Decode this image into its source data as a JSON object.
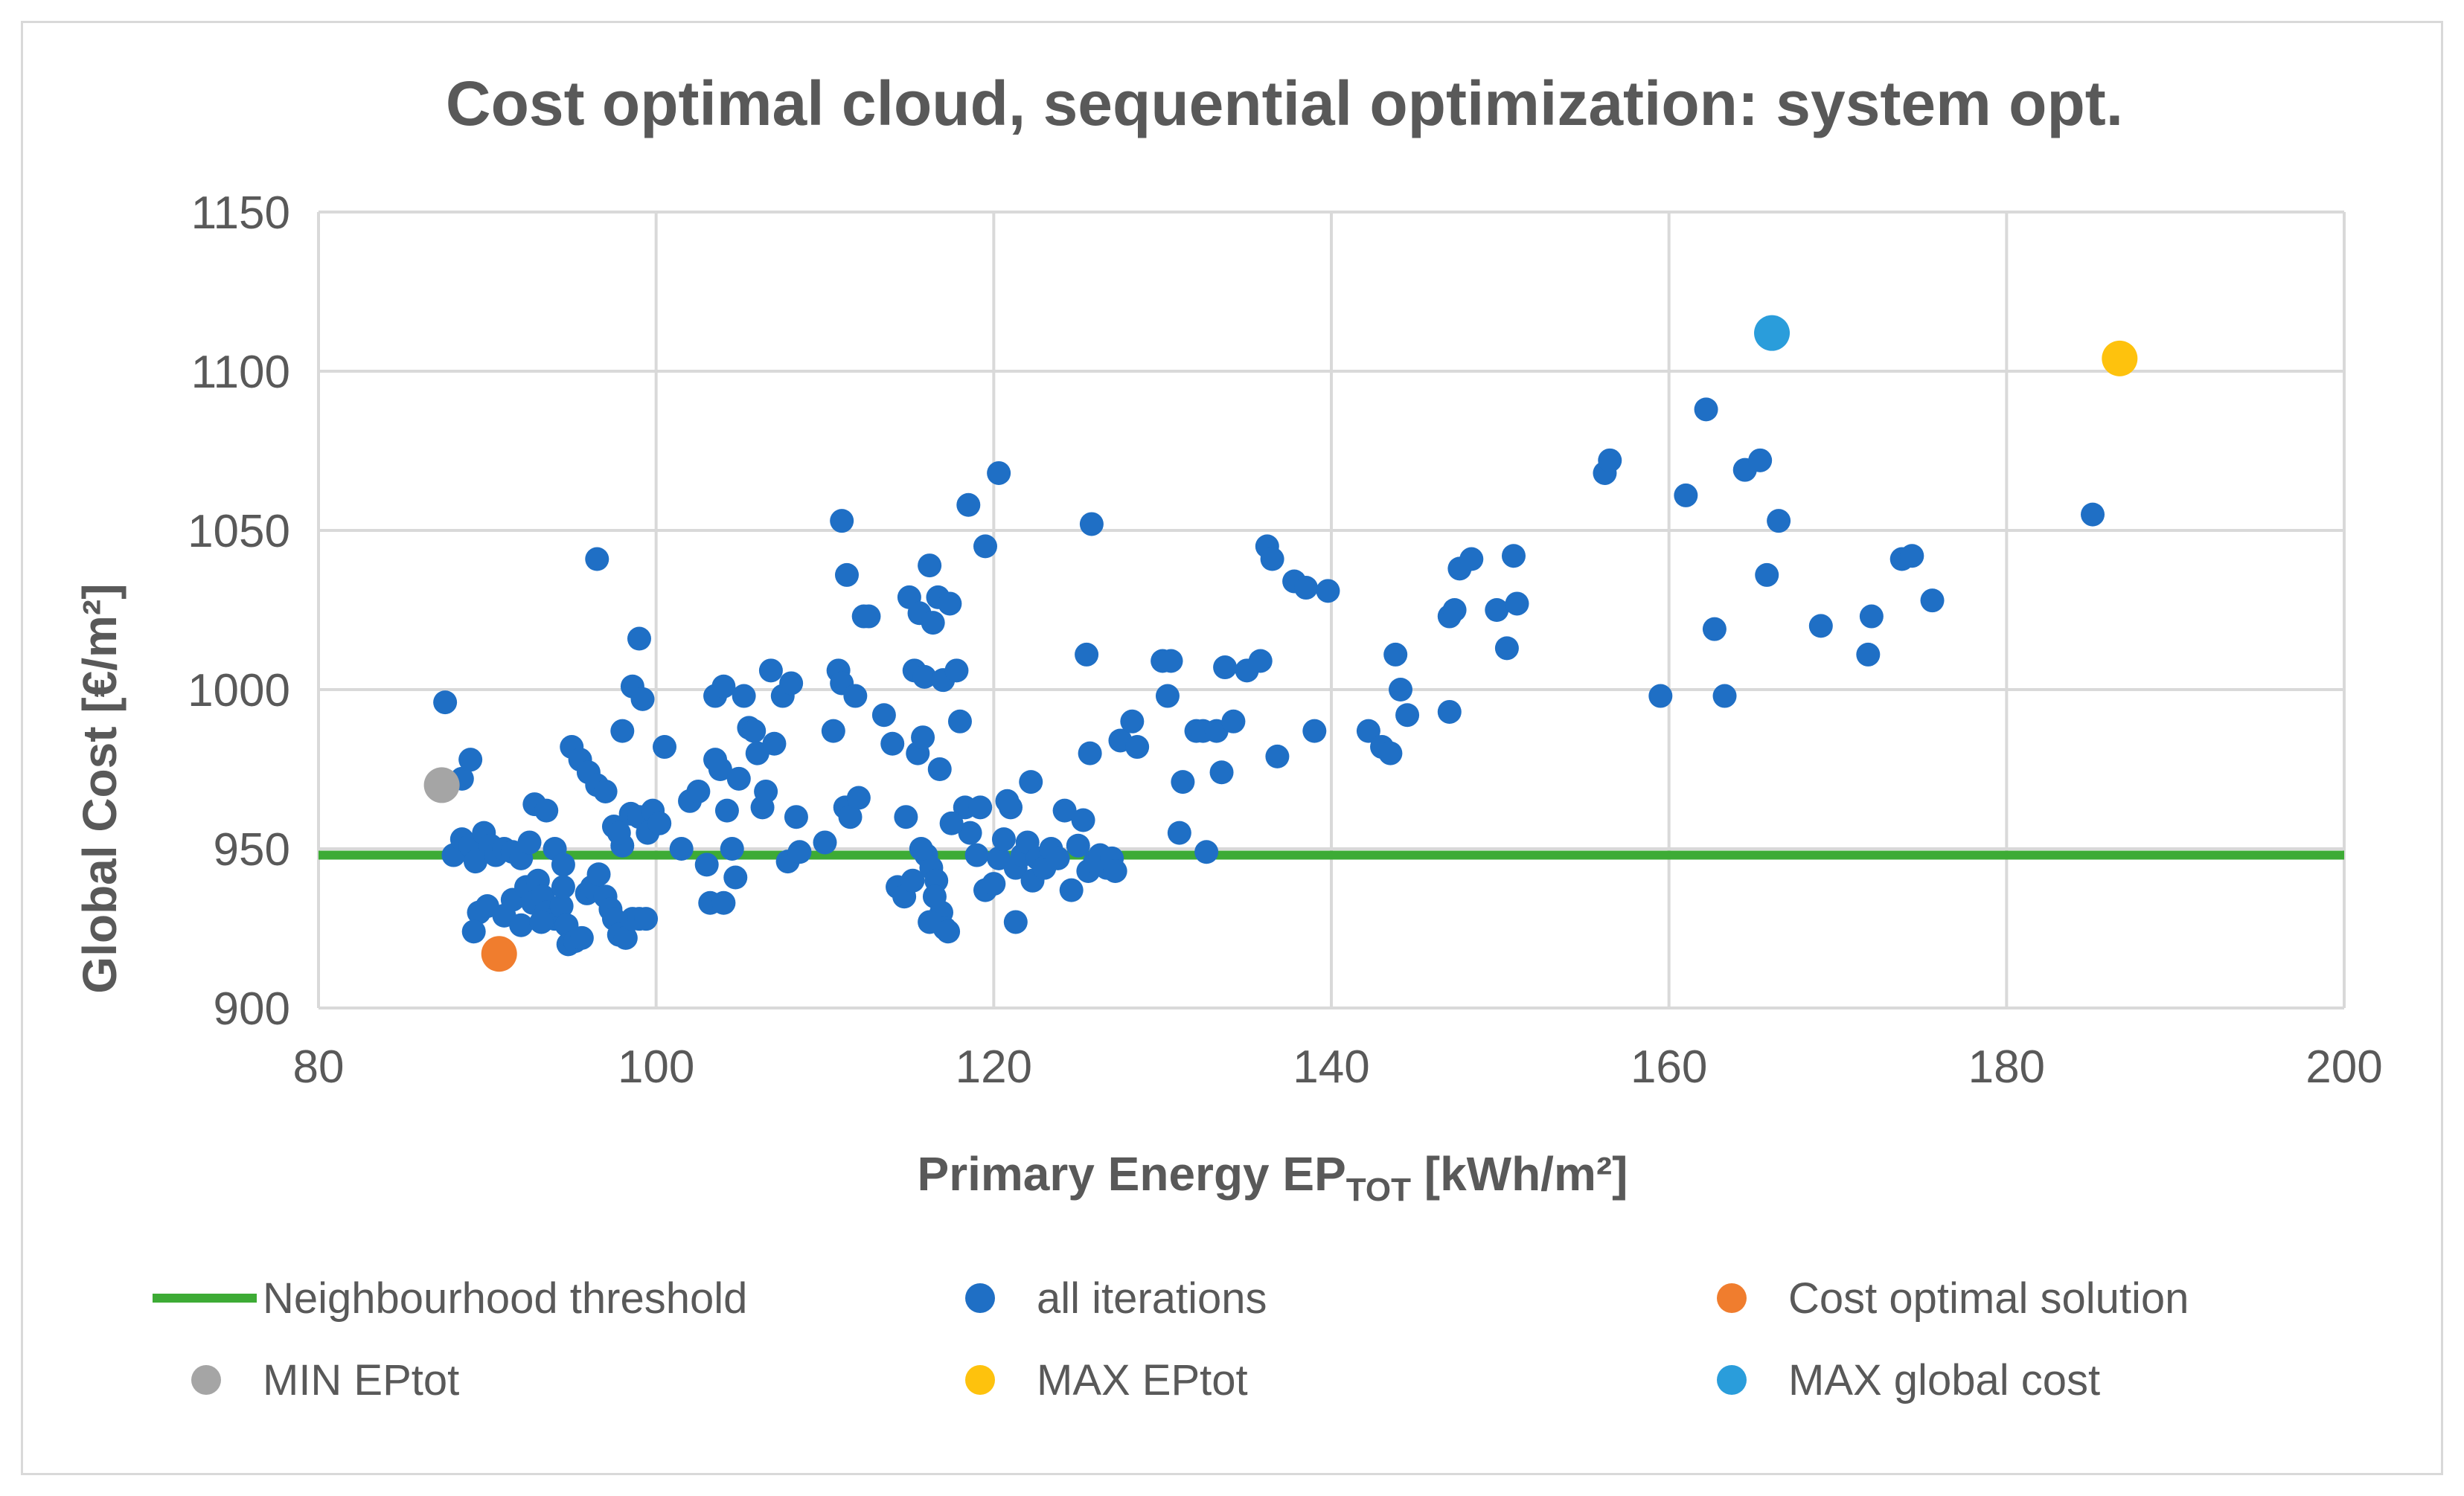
{
  "chart_data": {
    "type": "scatter",
    "title": "Cost optimal cloud, sequential optimization: system opt.",
    "xlabel": {
      "prefix": "Primary Energy EP",
      "subscript": "TOT",
      "suffix": " [kWh/m²]"
    },
    "ylabel": "Global Cost [€/m²]",
    "xlim": [
      80,
      200
    ],
    "ylim": [
      900,
      1150
    ],
    "x_ticks": [
      80,
      100,
      120,
      140,
      160,
      180,
      200
    ],
    "y_ticks": [
      900,
      950,
      1000,
      1050,
      1100,
      1150
    ],
    "grid": true,
    "legend_position": "bottom",
    "threshold": {
      "name": "Neighbourhood threshold",
      "y": 948,
      "color": "#3dab35"
    },
    "series": [
      {
        "name": "all iterations",
        "color": "#1f6fc5",
        "points": [
          [
            87.5,
            996
          ],
          [
            88.5,
            972
          ],
          [
            89,
            978
          ],
          [
            88,
            948
          ],
          [
            88.5,
            953
          ],
          [
            89,
            951
          ],
          [
            89.3,
            946
          ],
          [
            89.8,
            955
          ],
          [
            90.2,
            951
          ],
          [
            90.5,
            948
          ],
          [
            91,
            950
          ],
          [
            91.5,
            949
          ],
          [
            92,
            947
          ],
          [
            92.5,
            952
          ],
          [
            92.8,
            964
          ],
          [
            93.5,
            962
          ],
          [
            94,
            950
          ],
          [
            94.5,
            945
          ],
          [
            95,
            982
          ],
          [
            95.5,
            978
          ],
          [
            96,
            974
          ],
          [
            96.5,
            970
          ],
          [
            97,
            968
          ],
          [
            97.5,
            957
          ],
          [
            98,
            951
          ],
          [
            98.5,
            961
          ],
          [
            99,
            960
          ],
          [
            99.5,
            955
          ],
          [
            99.8,
            962
          ],
          [
            100.2,
            958
          ],
          [
            98.6,
            1001
          ],
          [
            99.2,
            997
          ],
          [
            99,
            1016
          ],
          [
            98,
            987
          ],
          [
            96.5,
            1041
          ],
          [
            97.8,
            955
          ],
          [
            89.5,
            930
          ],
          [
            89.2,
            924
          ],
          [
            90,
            932
          ],
          [
            91,
            929
          ],
          [
            91.5,
            934
          ],
          [
            92,
            926
          ],
          [
            92.3,
            938
          ],
          [
            92.7,
            933
          ],
          [
            93,
            940
          ],
          [
            93.3,
            935
          ],
          [
            93.5,
            930
          ],
          [
            94,
            928
          ],
          [
            94.4,
            932
          ],
          [
            94.7,
            926
          ],
          [
            94.8,
            920
          ],
          [
            95.2,
            921
          ],
          [
            95.6,
            922
          ],
          [
            95.9,
            936
          ],
          [
            96.2,
            938
          ],
          [
            96.6,
            942
          ],
          [
            97,
            935
          ],
          [
            97.3,
            931
          ],
          [
            97.5,
            928
          ],
          [
            97.8,
            923
          ],
          [
            98.2,
            922
          ],
          [
            98.6,
            928
          ],
          [
            99,
            928
          ],
          [
            99.4,
            928
          ],
          [
            93.2,
            927
          ],
          [
            94.5,
            938
          ],
          [
            100.5,
            982
          ],
          [
            101.5,
            950
          ],
          [
            102,
            965
          ],
          [
            102.5,
            968
          ],
          [
            103,
            945
          ],
          [
            103.2,
            933
          ],
          [
            103.5,
            998
          ],
          [
            103.8,
            975
          ],
          [
            104,
            1001
          ],
          [
            104.2,
            962
          ],
          [
            104.5,
            950
          ],
          [
            104.7,
            941
          ],
          [
            104.9,
            972
          ],
          [
            105.2,
            998
          ],
          [
            105.5,
            988
          ],
          [
            105.8,
            987
          ],
          [
            106,
            980
          ],
          [
            106.3,
            963
          ],
          [
            106.5,
            968
          ],
          [
            106.8,
            1006
          ],
          [
            107,
            983
          ],
          [
            107.5,
            998
          ],
          [
            107.8,
            946
          ],
          [
            108,
            1002
          ],
          [
            108.3,
            960
          ],
          [
            108.5,
            949
          ],
          [
            104,
            933
          ],
          [
            103.5,
            978
          ],
          [
            110,
            952
          ],
          [
            110.5,
            987
          ],
          [
            110.8,
            1006
          ],
          [
            111,
            1002
          ],
          [
            111.2,
            963
          ],
          [
            111.5,
            960
          ],
          [
            111.8,
            998
          ],
          [
            112,
            966
          ],
          [
            112.3,
            1023
          ],
          [
            112.6,
            1023
          ],
          [
            111,
            1053
          ],
          [
            111.3,
            1036
          ],
          [
            113.5,
            992
          ],
          [
            114,
            983
          ],
          [
            114.3,
            938
          ],
          [
            114.7,
            935
          ],
          [
            115,
            1029
          ],
          [
            115.3,
            1006
          ],
          [
            115.6,
            1024
          ],
          [
            115.9,
            1004
          ],
          [
            116.2,
            1039
          ],
          [
            116.4,
            1021
          ],
          [
            116.7,
            1029
          ],
          [
            117,
            1003
          ],
          [
            117.4,
            1027
          ],
          [
            117.8,
            1006
          ],
          [
            118,
            990
          ],
          [
            118.3,
            963
          ],
          [
            118.6,
            955
          ],
          [
            115.5,
            980
          ],
          [
            115.8,
            985
          ],
          [
            116,
            948
          ],
          [
            116.3,
            944
          ],
          [
            116.6,
            940
          ],
          [
            116.9,
            930
          ],
          [
            117.1,
            925
          ],
          [
            117.3,
            924
          ],
          [
            116.2,
            927
          ],
          [
            116.5,
            935
          ],
          [
            115.7,
            950
          ],
          [
            116.8,
            975
          ],
          [
            117.5,
            958
          ],
          [
            114.8,
            960
          ],
          [
            115.2,
            940
          ],
          [
            118.5,
            1058
          ],
          [
            119.5,
            1045
          ],
          [
            120.3,
            1068
          ],
          [
            119,
            948
          ],
          [
            119.5,
            937
          ],
          [
            120,
            939
          ],
          [
            120.3,
            947
          ],
          [
            120.6,
            953
          ],
          [
            121,
            963
          ],
          [
            121.3,
            944
          ],
          [
            121.7,
            948
          ],
          [
            122,
            952
          ],
          [
            122.3,
            940
          ],
          [
            122.6,
            947
          ],
          [
            123,
            944
          ],
          [
            123.4,
            950
          ],
          [
            123.8,
            947
          ],
          [
            124.2,
            962
          ],
          [
            124.6,
            937
          ],
          [
            125,
            951
          ],
          [
            125.3,
            959
          ],
          [
            125.6,
            943
          ],
          [
            126,
            946
          ],
          [
            126.3,
            948
          ],
          [
            126.7,
            944
          ],
          [
            127,
            947
          ],
          [
            127.2,
            943
          ],
          [
            119.2,
            963
          ],
          [
            120.8,
            965
          ],
          [
            121.3,
            927
          ],
          [
            122.2,
            971
          ],
          [
            125.7,
            980
          ],
          [
            125.5,
            1011
          ],
          [
            125.8,
            1052
          ],
          [
            127.5,
            984
          ],
          [
            128.2,
            990
          ],
          [
            128.5,
            982
          ],
          [
            130,
            1009
          ],
          [
            130.5,
            1009
          ],
          [
            130.3,
            998
          ],
          [
            131,
            955
          ],
          [
            131.2,
            971
          ],
          [
            132,
            987
          ],
          [
            132.4,
            987
          ],
          [
            132.6,
            949
          ],
          [
            133.2,
            987
          ],
          [
            133.5,
            974
          ],
          [
            133.7,
            1007
          ],
          [
            134.2,
            990
          ],
          [
            135,
            1006
          ],
          [
            135.8,
            1009
          ],
          [
            136.2,
            1045
          ],
          [
            136.5,
            1041
          ],
          [
            136.8,
            979
          ],
          [
            137.8,
            1034
          ],
          [
            138.5,
            1032
          ],
          [
            139,
            987
          ],
          [
            139.8,
            1031
          ],
          [
            142.2,
            987
          ],
          [
            143,
            982
          ],
          [
            143.5,
            980
          ],
          [
            143.8,
            1011
          ],
          [
            144.1,
            1000
          ],
          [
            144.5,
            992
          ],
          [
            147,
            993
          ],
          [
            147,
            1023
          ],
          [
            147.3,
            1025
          ],
          [
            147.6,
            1038
          ],
          [
            148.3,
            1041
          ],
          [
            149.8,
            1025
          ],
          [
            150.4,
            1013
          ],
          [
            150.8,
            1042
          ],
          [
            151,
            1027
          ],
          [
            156.2,
            1068
          ],
          [
            156.5,
            1072
          ],
          [
            159.5,
            998
          ],
          [
            161,
            1061
          ],
          [
            162.2,
            1088
          ],
          [
            162.7,
            1019
          ],
          [
            163.3,
            998
          ],
          [
            164.5,
            1069
          ],
          [
            165.4,
            1072
          ],
          [
            165.8,
            1036
          ],
          [
            166.5,
            1053
          ],
          [
            169,
            1020
          ],
          [
            171.8,
            1011
          ],
          [
            172,
            1023
          ],
          [
            173.8,
            1041
          ],
          [
            174.4,
            1042
          ],
          [
            175.6,
            1028
          ],
          [
            185.1,
            1055
          ]
        ]
      },
      {
        "name": "Cost optimal solution",
        "color": "#f07d2e",
        "points": [
          [
            90.7,
            917
          ]
        ]
      },
      {
        "name": "MIN EPtot",
        "color": "#a5a5a5",
        "points": [
          [
            87.3,
            970
          ]
        ]
      },
      {
        "name": "MAX EPtot",
        "color": "#fec20d",
        "points": [
          [
            186.7,
            1104
          ]
        ]
      },
      {
        "name": "MAX global cost",
        "color": "#2a9ddb",
        "points": [
          [
            166.1,
            1112
          ]
        ]
      }
    ],
    "legend": [
      {
        "label": "Neighbourhood threshold",
        "kind": "line",
        "color": "#3dab35"
      },
      {
        "label": "all iterations",
        "kind": "dot",
        "color": "#1f6fc5"
      },
      {
        "label": "Cost optimal solution",
        "kind": "dot",
        "color": "#f07d2e"
      },
      {
        "label": "MIN EPtot",
        "kind": "dot",
        "color": "#a5a5a5"
      },
      {
        "label": "MAX EPtot",
        "kind": "dot",
        "color": "#fec20d"
      },
      {
        "label": "MAX global cost",
        "kind": "dot",
        "color": "#2a9ddb"
      }
    ]
  }
}
